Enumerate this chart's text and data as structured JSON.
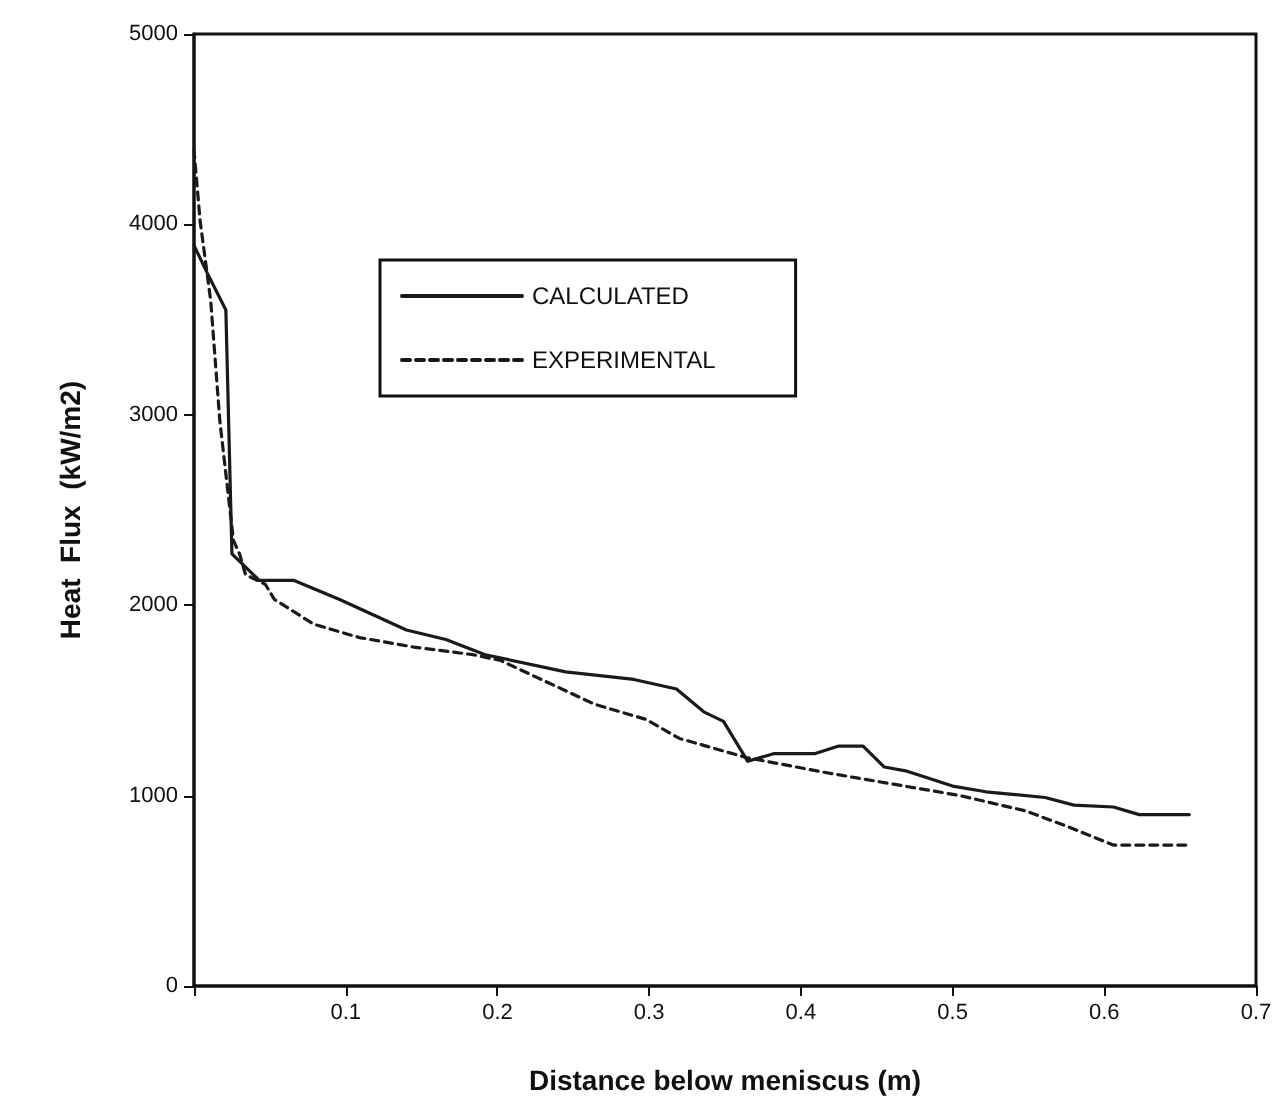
{
  "chart_data": {
    "type": "line",
    "xlabel": "Distance below meniscus (m)",
    "ylabel": "Heat  Flux  (kW/m2)",
    "series": [
      {
        "name": "CALCULATED",
        "color": "#1a1a1a",
        "line_style": "solid",
        "x": [
          0,
          0.009,
          0.021,
          0.025,
          0.043,
          0.066,
          0.096,
          0.14,
          0.166,
          0.192,
          0.245,
          0.29,
          0.318,
          0.336,
          0.349,
          0.365,
          0.382,
          0.409,
          0.425,
          0.441,
          0.455,
          0.469,
          0.5,
          0.522,
          0.561,
          0.58,
          0.606,
          0.623,
          0.656
        ],
        "values": [
          3890,
          3740,
          3550,
          2270,
          2130,
          2130,
          2030,
          1870,
          1820,
          1740,
          1650,
          1610,
          1560,
          1440,
          1390,
          1180,
          1220,
          1220,
          1260,
          1260,
          1150,
          1130,
          1050,
          1020,
          990,
          950,
          940,
          900,
          900
        ]
      },
      {
        "name": "EXPERIMENTAL",
        "color": "#1a1a1a",
        "line_style": "dashed",
        "x": [
          0,
          0.004,
          0.011,
          0.017,
          0.026,
          0.03,
          0.034,
          0.047,
          0.053,
          0.079,
          0.109,
          0.145,
          0.184,
          0.202,
          0.237,
          0.264,
          0.298,
          0.32,
          0.364,
          0.417,
          0.461,
          0.505,
          0.548,
          0.575,
          0.606,
          0.656
        ],
        "values": [
          4390,
          4020,
          3600,
          2970,
          2340,
          2270,
          2160,
          2110,
          2030,
          1900,
          1830,
          1780,
          1740,
          1710,
          1580,
          1480,
          1400,
          1300,
          1200,
          1120,
          1060,
          1000,
          920,
          840,
          740,
          740
        ]
      }
    ],
    "xlim": [
      0,
      0.7
    ],
    "xticks": [
      {
        "value": 0,
        "label": null
      },
      0.1,
      0.2,
      0.3,
      0.4,
      0.5,
      0.6,
      0.7
    ],
    "ylim": [
      0,
      5000
    ],
    "yticks": [
      0,
      1000,
      2000,
      3000,
      4000,
      5000
    ],
    "grid": false,
    "legend": "top left",
    "marker": "none"
  }
}
